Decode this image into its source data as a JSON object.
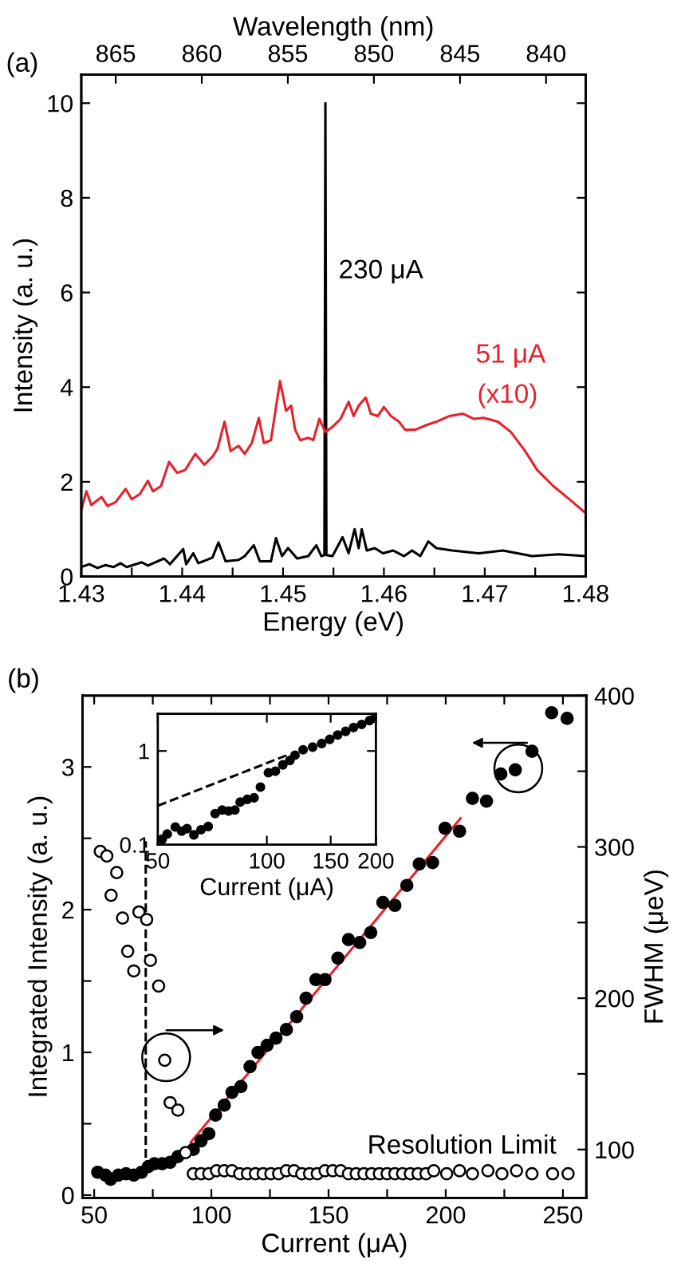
{
  "chart_data": [
    {
      "type": "line",
      "title": "(a)",
      "xlabel": "Energy (eV)",
      "ylabel": "Intensity (a. u.)",
      "x2label": "Wavelength (nm)",
      "xlim": [
        1.43,
        1.48
      ],
      "ylim": [
        0,
        10.6
      ],
      "x2lim": [
        867.0,
        837.7
      ],
      "xticks": [
        1.43,
        {
          "value": 1.435,
          "label": null
        },
        1.44,
        {
          "value": 1.445,
          "label": null
        },
        1.45,
        {
          "value": 1.455,
          "label": null
        },
        1.46,
        {
          "value": 1.465,
          "label": null
        },
        1.47,
        {
          "value": 1.475,
          "label": null
        },
        1.48
      ],
      "yticks": [
        0,
        2,
        4,
        6,
        8,
        10
      ],
      "x2ticks": [
        865,
        860,
        855,
        850,
        845,
        840
      ],
      "annotations": [
        "(x10)"
      ],
      "series": [
        {
          "name": "230 μA",
          "color": "#000000",
          "x": [
            1.43,
            1.4308,
            1.4316,
            1.4324,
            1.4332,
            1.4339,
            1.4345,
            1.436,
            1.4366,
            1.4382,
            1.4388,
            1.4401,
            1.4404,
            1.4411,
            1.4416,
            1.443,
            1.4436,
            1.4443,
            1.4456,
            1.4462,
            1.4471,
            1.4477,
            1.4488,
            1.4493,
            1.4499,
            1.4505,
            1.4514,
            1.4525,
            1.4533,
            1.4538,
            1.4541,
            1.4542,
            1.4543,
            1.4549,
            1.4559,
            1.4565,
            1.4571,
            1.4575,
            1.4578,
            1.4583,
            1.4591,
            1.4599,
            1.4609,
            1.462,
            1.4628,
            1.4636,
            1.4644,
            1.4652,
            1.4668,
            1.4694,
            1.4718,
            1.4747,
            1.4773,
            1.48
          ],
          "values": [
            0.2,
            0.26,
            0.18,
            0.24,
            0.2,
            0.28,
            0.2,
            0.3,
            0.23,
            0.38,
            0.26,
            0.58,
            0.26,
            0.49,
            0.28,
            0.4,
            0.72,
            0.32,
            0.35,
            0.43,
            0.66,
            0.32,
            0.32,
            0.81,
            0.43,
            0.6,
            0.38,
            0.43,
            0.66,
            0.43,
            0.45,
            10.0,
            0.45,
            0.43,
            0.83,
            0.49,
            1.0,
            0.6,
            1.0,
            0.55,
            0.6,
            0.49,
            0.55,
            0.43,
            0.55,
            0.43,
            0.74,
            0.6,
            0.55,
            0.49,
            0.55,
            0.43,
            0.47,
            0.43
          ]
        },
        {
          "name": "51 μA",
          "color": "#e8202a",
          "x": [
            1.43,
            1.4305,
            1.431,
            1.432,
            1.4326,
            1.4334,
            1.4344,
            1.435,
            1.4358,
            1.4366,
            1.4371,
            1.4379,
            1.4387,
            1.4395,
            1.4403,
            1.4413,
            1.4422,
            1.443,
            1.4435,
            1.4442,
            1.4448,
            1.4456,
            1.4462,
            1.4469,
            1.4476,
            1.4481,
            1.4488,
            1.4497,
            1.4503,
            1.4508,
            1.4512,
            1.4517,
            1.4525,
            1.453,
            1.4536,
            1.4542,
            1.4549,
            1.4557,
            1.4565,
            1.457,
            1.4575,
            1.4582,
            1.4587,
            1.4594,
            1.46,
            1.4607,
            1.4615,
            1.4621,
            1.4631,
            1.4641,
            1.4652,
            1.4665,
            1.4678,
            1.4689,
            1.4699,
            1.4713,
            1.4726,
            1.474,
            1.4752,
            1.4768,
            1.4784,
            1.48
          ],
          "values": [
            1.4,
            1.8,
            1.51,
            1.68,
            1.49,
            1.57,
            1.85,
            1.63,
            1.74,
            2.02,
            1.8,
            1.91,
            2.42,
            2.19,
            2.25,
            2.59,
            2.36,
            2.53,
            2.7,
            3.27,
            2.65,
            2.76,
            2.59,
            2.82,
            3.35,
            2.82,
            2.88,
            4.13,
            3.5,
            3.61,
            3.1,
            2.88,
            2.93,
            2.88,
            3.33,
            3.05,
            3.16,
            3.33,
            3.69,
            3.39,
            3.61,
            3.78,
            3.44,
            3.39,
            3.58,
            3.39,
            3.27,
            3.1,
            3.1,
            3.19,
            3.27,
            3.39,
            3.44,
            3.33,
            3.35,
            3.27,
            3.05,
            2.65,
            2.25,
            1.91,
            1.63,
            1.34
          ]
        }
      ]
    },
    {
      "type": "scatter",
      "title": "(b)",
      "xlabel": "Current (μA)",
      "ylabel": "Integrated Intensity (a. u.)",
      "y2label": "FWHM (μeV)",
      "xlim": [
        45,
        260
      ],
      "ylim": [
        -0.02,
        3.5
      ],
      "y2lim": [
        68,
        400
      ],
      "xticks": [
        50,
        {
          "value": 75,
          "label": null
        },
        100,
        {
          "value": 125,
          "label": null
        },
        150,
        {
          "value": 175,
          "label": null
        },
        200,
        {
          "value": 225,
          "label": null
        },
        250
      ],
      "yticks": [
        0,
        {
          "value": 0.5,
          "label": null
        },
        1,
        {
          "value": 1.5,
          "label": null
        },
        2,
        {
          "value": 2.5,
          "label": null
        },
        3
      ],
      "y2ticks": [
        100,
        {
          "value": 150,
          "label": null
        },
        200,
        {
          "value": 250,
          "label": null
        },
        300,
        {
          "value": 350,
          "label": null
        },
        400
      ],
      "annotations": [
        "Resolution Limit"
      ],
      "series": [
        {
          "type": "line",
          "color": "#000000",
          "line_style": "dashed",
          "x": [
            72,
            72
          ],
          "values": [
            0.17,
            2.48
          ]
        },
        {
          "type": "scatter",
          "axis": "y2",
          "color": "#000000",
          "marker": "circle",
          "x": [
            52.6,
            55.4,
            57.2,
            59.6,
            62.1,
            64.3,
            66.9,
            69.1,
            72.4,
            74.0,
            77.5,
            80.1,
            82.4,
            85.7,
            89.0,
            92.3,
            95.6,
            98.9,
            102.2,
            105.5,
            108.8,
            112.1,
            115.4,
            118.8,
            122.1,
            125.4,
            128.7,
            132.0,
            135.3,
            138.6,
            141.9,
            145.2,
            148.5,
            151.8,
            155.2,
            158.5,
            161.8,
            165.1,
            168.4,
            171.7,
            175.0,
            178.3,
            181.6,
            184.9,
            188.2,
            191.6,
            194.9,
            200.4,
            205.9,
            211.4,
            218.0,
            224.0,
            230.2,
            236.8,
            245.6,
            252.2
          ],
          "values": [
            297,
            294,
            268,
            283,
            253,
            231,
            218,
            257,
            252,
            225,
            208,
            159,
            131,
            126,
            98,
            84,
            84,
            84,
            86,
            86,
            86,
            84,
            84,
            84,
            84,
            84,
            84,
            86,
            86,
            84,
            84,
            84,
            86,
            86,
            86,
            84,
            84,
            84,
            84,
            84,
            84,
            84,
            84,
            84,
            84,
            84,
            86,
            84,
            86,
            84,
            86,
            84,
            86,
            84,
            84,
            84
          ]
        },
        {
          "type": "scatter",
          "color": "#000000",
          "marker": "circle",
          "x": [
            51.5,
            54.8,
            57.0,
            60.3,
            63.6,
            66.9,
            70.2,
            73.1,
            75.7,
            79.0,
            82.4,
            85.7,
            92.3,
            95.6,
            98.9,
            101.8,
            105.5,
            108.8,
            112.6,
            116.5,
            119.9,
            123.8,
            127.6,
            132.0,
            136.4,
            140.4,
            144.6,
            148.5,
            154.0,
            158.5,
            163.3,
            168.0,
            173.2,
            178.3,
            183.4,
            188.7,
            194.4,
            199.7,
            205.9,
            211.4,
            217.4,
            223.5,
            229.7,
            236.8,
            245.2,
            251.8
          ],
          "values": [
            0.16,
            0.14,
            0.11,
            0.14,
            0.15,
            0.14,
            0.16,
            0.2,
            0.22,
            0.22,
            0.23,
            0.27,
            0.32,
            0.38,
            0.43,
            0.56,
            0.63,
            0.72,
            0.76,
            0.9,
            1.0,
            1.05,
            1.1,
            1.16,
            1.25,
            1.38,
            1.51,
            1.51,
            1.66,
            1.79,
            1.77,
            1.84,
            2.05,
            2.03,
            2.17,
            2.32,
            2.33,
            2.57,
            2.55,
            2.78,
            2.76,
            2.95,
            2.98,
            3.11,
            3.38,
            3.34
          ]
        },
        {
          "type": "line",
          "color": "#e8202a",
          "x": [
            91.2,
            206.3
          ],
          "values": [
            0.37,
            2.64
          ]
        }
      ]
    },
    {
      "type": "scatter",
      "xlabel": "Current (μA)",
      "log": "xy",
      "xlim": [
        50,
        200
      ],
      "ylim": [
        0.1,
        2.5
      ],
      "xticks": [
        50,
        100,
        150,
        200
      ],
      "yticks": [
        0.1,
        1
      ],
      "series": [
        {
          "type": "line",
          "color": "#000000",
          "line_style": "dashed",
          "x": [
            50,
            113.6
          ],
          "values": [
            0.26,
            0.9
          ]
        },
        {
          "type": "scatter",
          "color": "#000000",
          "marker": "circle",
          "x": [
            51.4,
            53.1,
            55.9,
            58.2,
            60.2,
            62.9,
            65.8,
            68.9,
            72.0,
            75.3,
            78.4,
            81.6,
            84.4,
            88.3,
            92.2,
            96.0,
            101.0,
            105.6,
            110.7,
            115.7,
            119.6,
            125.9,
            133.8,
            141.7,
            149.1,
            156.8,
            165.0,
            173.5,
            182.6,
            192.0,
            198.6
          ],
          "values": [
            0.114,
            0.13,
            0.154,
            0.139,
            0.148,
            0.127,
            0.144,
            0.156,
            0.214,
            0.234,
            0.228,
            0.234,
            0.285,
            0.304,
            0.316,
            0.411,
            0.585,
            0.608,
            0.711,
            0.791,
            0.901,
            1.03,
            1.1,
            1.2,
            1.33,
            1.48,
            1.62,
            1.78,
            1.92,
            2.11,
            2.25
          ]
        }
      ]
    }
  ]
}
